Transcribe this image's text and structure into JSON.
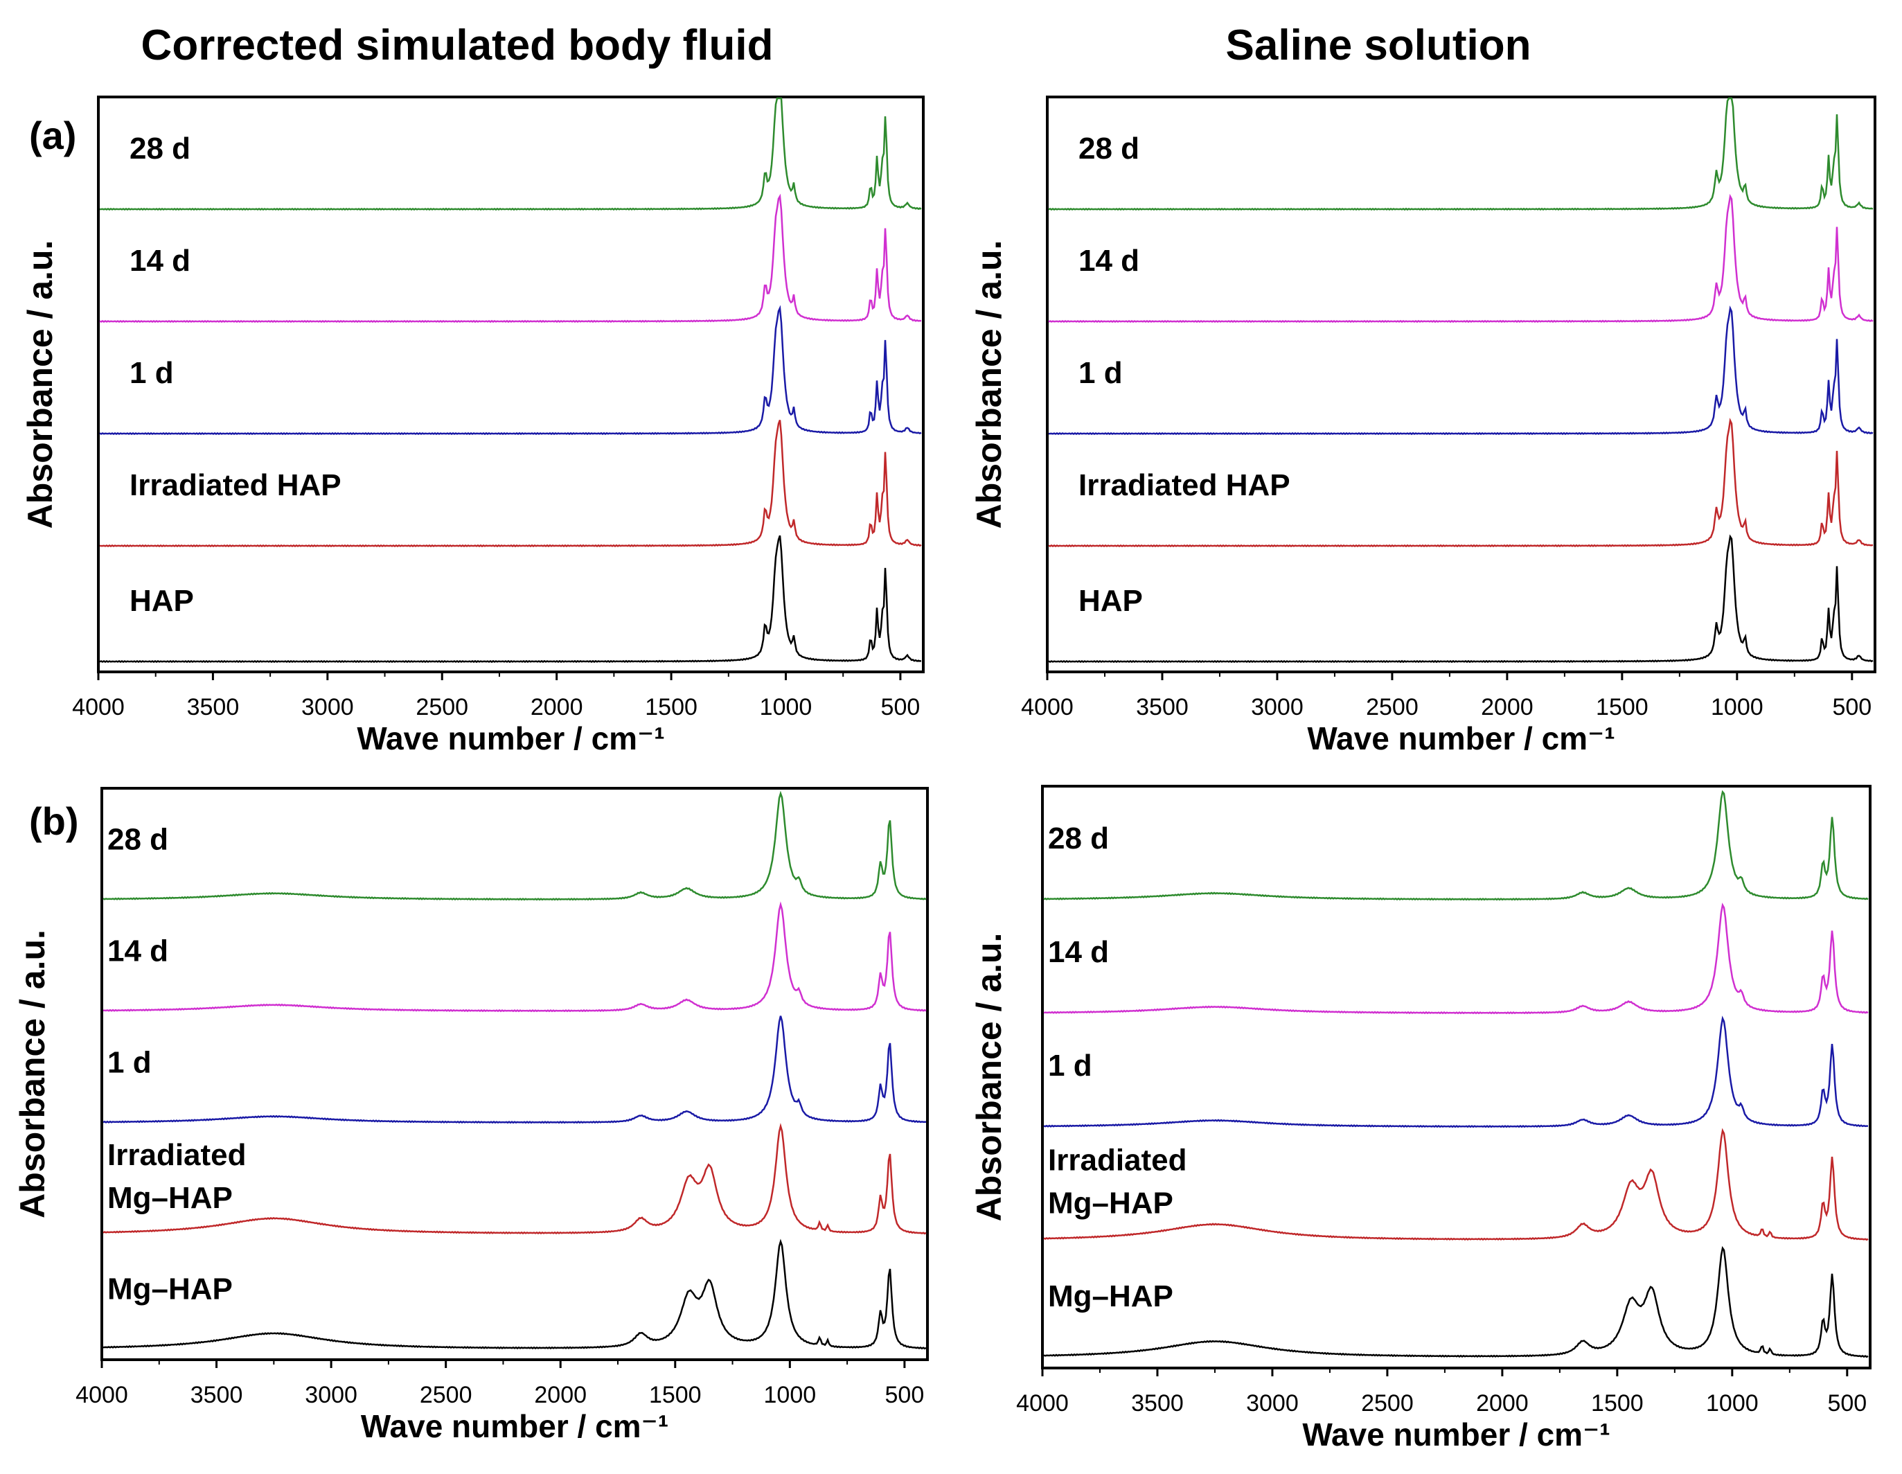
{
  "columns": [
    "Corrected simulated body fluid",
    "Saline solution"
  ],
  "chart_data": [
    {
      "type": "line",
      "panel_label": "(a)",
      "solution": "Corrected simulated body fluid",
      "xlabel": "Wave number / cm⁻¹",
      "ylabel": "Absorbance / a.u.",
      "xlim": [
        4000,
        400
      ],
      "x_ticks": [
        4000,
        3500,
        3000,
        2500,
        2000,
        1500,
        1000,
        500
      ],
      "series": [
        {
          "name": "28 d",
          "color": "#2e8b2e"
        },
        {
          "name": "14 d",
          "color": "#d030d0"
        },
        {
          "name": "1 d",
          "color": "#1a1aa6"
        },
        {
          "name": "Irradiated HAP",
          "color": "#c0282a"
        },
        {
          "name": "HAP",
          "color": "#000000"
        }
      ]
    },
    {
      "type": "line",
      "panel_label": "",
      "solution": "Saline solution",
      "xlabel": "Wave number / cm⁻¹",
      "ylabel": "Absorbance / a.u.",
      "xlim": [
        4000,
        400
      ],
      "x_ticks": [
        4000,
        3500,
        3000,
        2500,
        2000,
        1500,
        1000,
        500
      ],
      "series": [
        {
          "name": "28 d",
          "color": "#2e8b2e"
        },
        {
          "name": "14 d",
          "color": "#d030d0"
        },
        {
          "name": "1 d",
          "color": "#1a1aa6"
        },
        {
          "name": "Irradiated HAP",
          "color": "#c0282a"
        },
        {
          "name": "HAP",
          "color": "#000000"
        }
      ]
    },
    {
      "type": "line",
      "panel_label": "(b)",
      "solution": "Corrected simulated body fluid",
      "xlabel": "Wave number / cm⁻¹",
      "ylabel": "Absorbance / a.u.",
      "xlim": [
        4000,
        400
      ],
      "x_ticks": [
        4000,
        3500,
        3000,
        2500,
        2000,
        1500,
        1000,
        500
      ],
      "series": [
        {
          "name": "28 d",
          "color": "#2e8b2e"
        },
        {
          "name": "14 d",
          "color": "#d030d0"
        },
        {
          "name": "1 d",
          "color": "#1a1aa6"
        },
        {
          "name": "Irradiated Mg–HAP",
          "color": "#c0282a"
        },
        {
          "name": "Mg–HAP",
          "color": "#000000"
        }
      ]
    },
    {
      "type": "line",
      "panel_label": "",
      "solution": "Saline solution",
      "xlabel": "Wave number / cm⁻¹",
      "ylabel": "Absorbance / a.u.",
      "xlim": [
        4000,
        400
      ],
      "x_ticks": [
        4000,
        3500,
        3000,
        2500,
        2000,
        1500,
        1000,
        500
      ],
      "series": [
        {
          "name": "28 d",
          "color": "#2e8b2e"
        },
        {
          "name": "14 d",
          "color": "#d030d0"
        },
        {
          "name": "1 d",
          "color": "#1a1aa6"
        },
        {
          "name": "Irradiated Mg–HAP",
          "color": "#c0282a"
        },
        {
          "name": "Mg–HAP",
          "color": "#000000"
        }
      ]
    }
  ]
}
